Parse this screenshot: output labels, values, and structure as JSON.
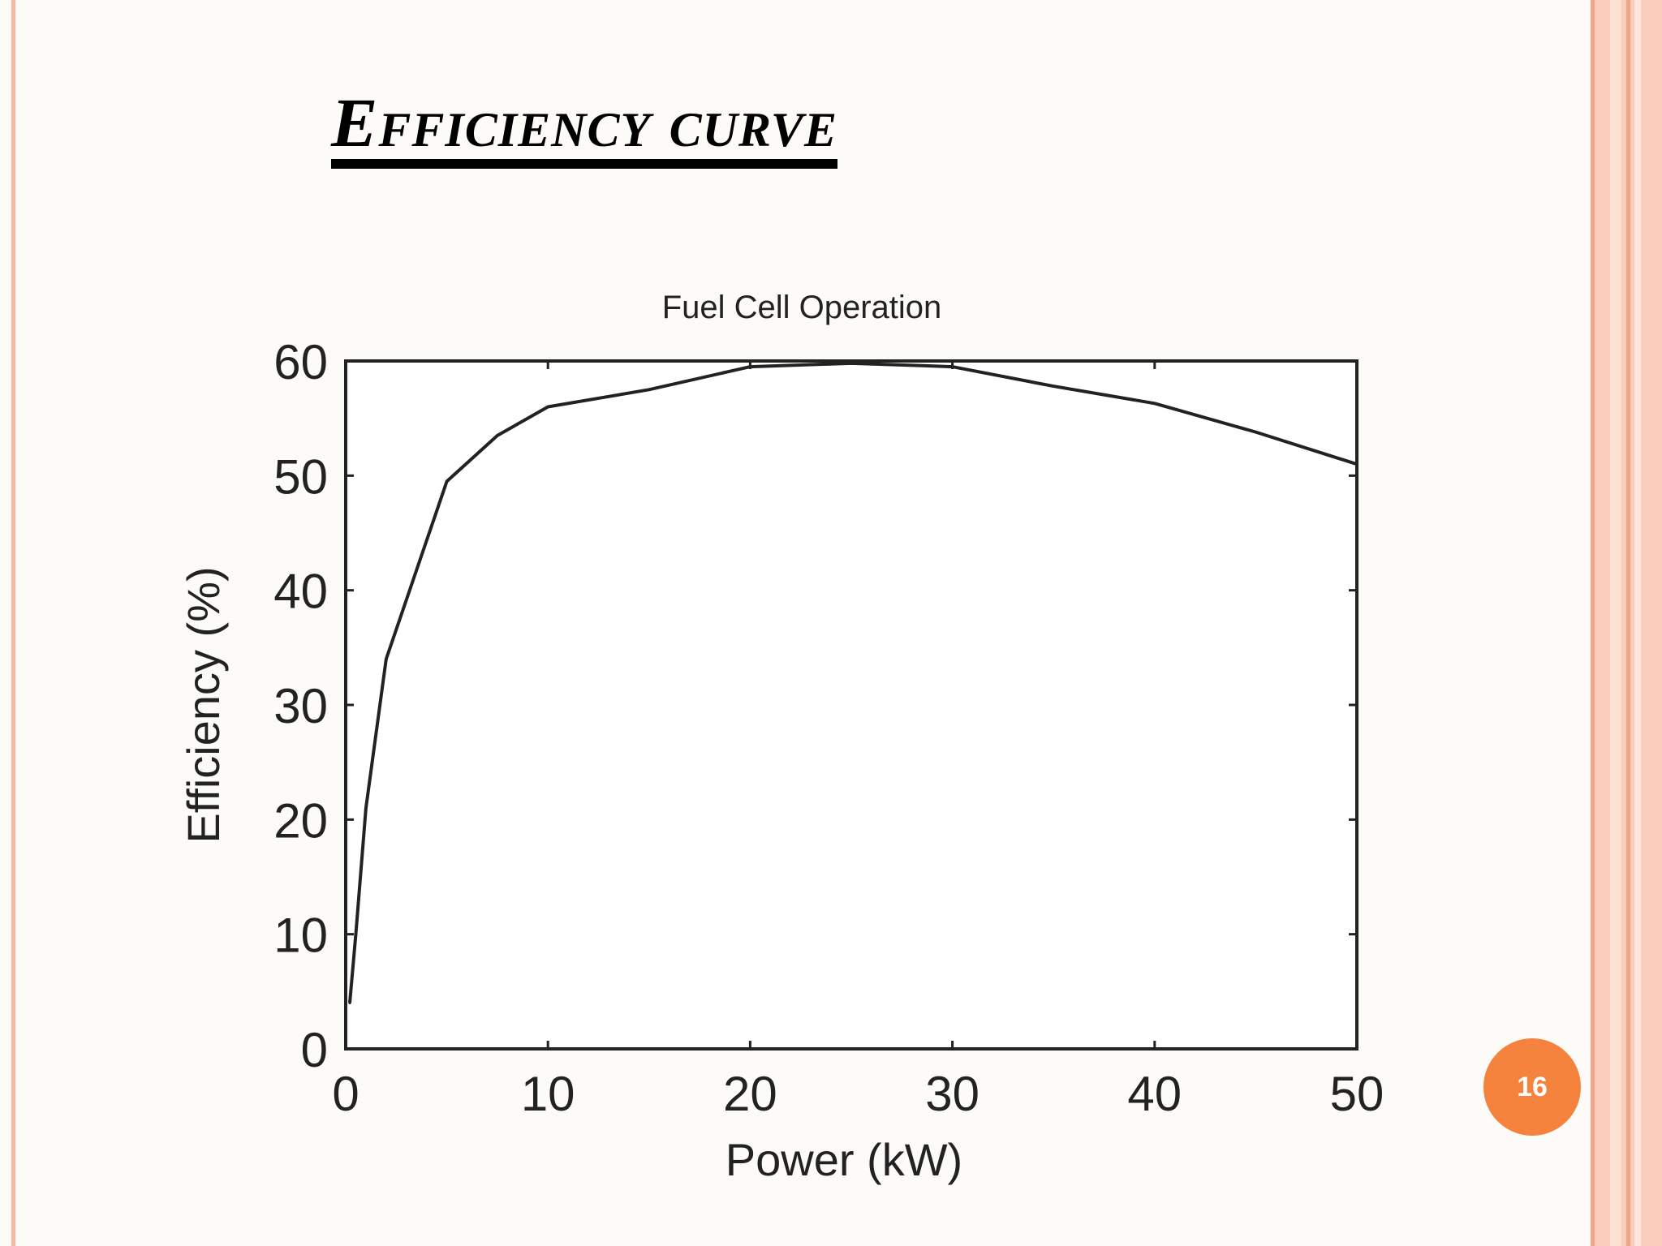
{
  "slide": {
    "title": "Efficiency  curve",
    "page_number": "16",
    "accent_color": "#f5823d",
    "border_color": "#f4b9a3"
  },
  "chart_data": {
    "type": "line",
    "title": "Fuel Cell Operation",
    "xlabel": "Power (kW)",
    "ylabel": "Efficiency (%)",
    "xlim": [
      0,
      50
    ],
    "ylim": [
      0,
      60
    ],
    "xticks": [
      "0",
      "10",
      "20",
      "30",
      "40",
      "50"
    ],
    "yticks": [
      "0",
      "10",
      "20",
      "30",
      "40",
      "50",
      "60"
    ],
    "grid": false,
    "series": [
      {
        "x": [
          0.2,
          0.5,
          1,
          2,
          5,
          7.5,
          10,
          15,
          20,
          25,
          30,
          35,
          40,
          45,
          50
        ],
        "y": [
          4,
          10,
          21,
          34,
          49.5,
          53.5,
          56,
          57.5,
          59.5,
          59.8,
          59.5,
          57.8,
          56.3,
          53.8,
          51
        ],
        "color": "#222222"
      }
    ]
  }
}
